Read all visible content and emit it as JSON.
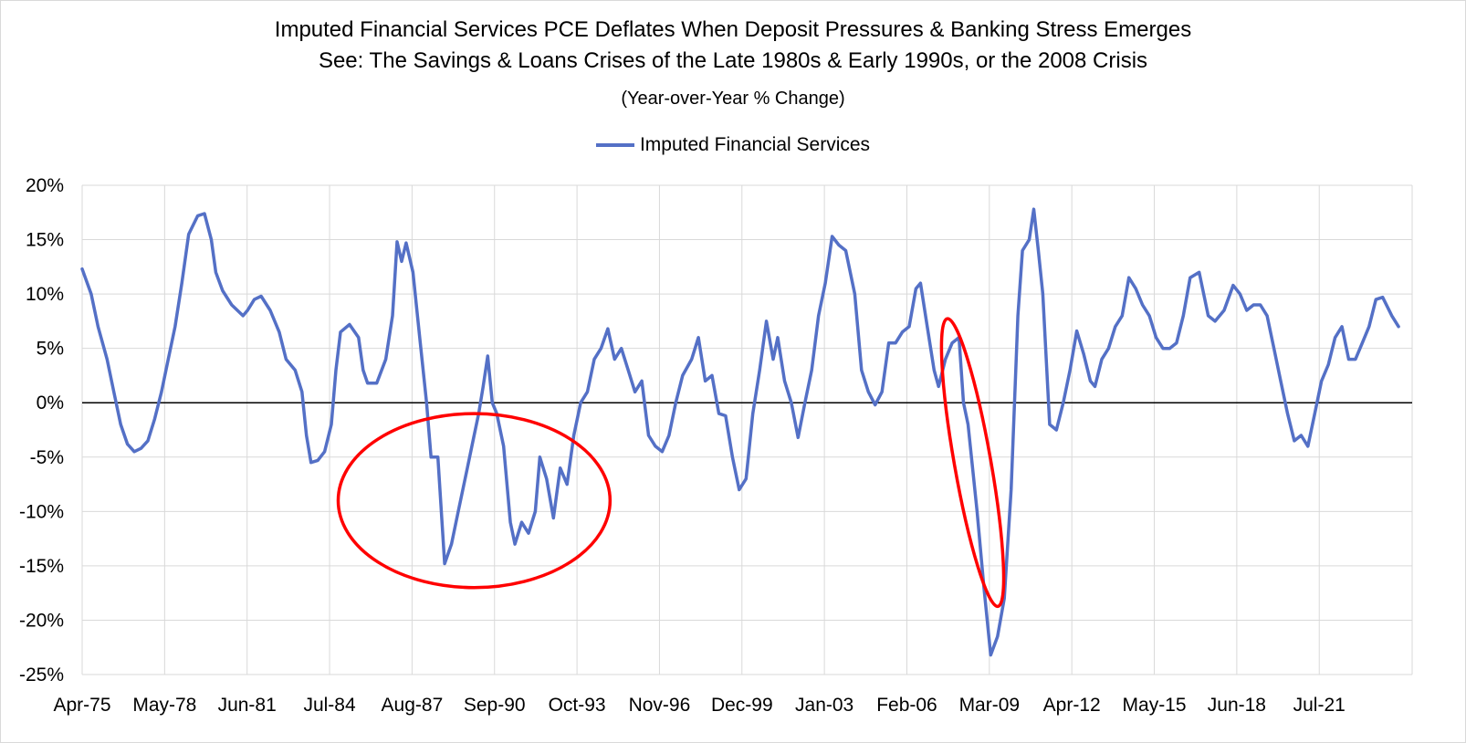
{
  "colors": {
    "series": "#5470c6",
    "annotation": "#ff0000",
    "grid": "#d9d9d9",
    "zero_line": "#000000"
  },
  "chart_data": {
    "type": "line",
    "title": "Imputed Financial Services PCE  Deflates When Deposit Pressures & Banking Stress Emerges",
    "title_line2": "See: The Savings & Loans Crises of the Late 1980s & Early 1990s, or the 2008 Crisis",
    "subtitle": "(Year-over-Year % Change)",
    "xlabel": "",
    "ylabel": "",
    "legend_position": "top-center",
    "grid": "vertical-and-horizontal",
    "x_tick_labels": [
      "Apr-75",
      "May-78",
      "Jun-81",
      "Jul-84",
      "Aug-87",
      "Sep-90",
      "Oct-93",
      "Nov-96",
      "Dec-99",
      "Jan-03",
      "Feb-06",
      "Mar-09",
      "Apr-12",
      "May-15",
      "Jun-18",
      "Jul-21"
    ],
    "y_tick_labels": [
      "20%",
      "15%",
      "10%",
      "5%",
      "0%",
      "-5%",
      "-10%",
      "-15%",
      "-20%",
      "-25%"
    ],
    "xlim": [
      "1975-04",
      "2024-03"
    ],
    "ylim": [
      -25,
      20
    ],
    "annotations": [
      {
        "shape": "ellipse",
        "from": "1984-09",
        "to": "1994-09",
        "ymin": -17,
        "ymax": -1
      },
      {
        "shape": "ellipse",
        "from": "2006-09",
        "to": "2009-05",
        "ymin": -19,
        "ymax": 8
      }
    ],
    "series": [
      {
        "name": "Imputed Financial Services",
        "points": [
          [
            "1975-04",
            12.3
          ],
          [
            "1975-08",
            10
          ],
          [
            "1975-11",
            7
          ],
          [
            "1976-03",
            4
          ],
          [
            "1976-06",
            1
          ],
          [
            "1976-09",
            -2
          ],
          [
            "1976-12",
            -3.8
          ],
          [
            "1977-03",
            -4.5
          ],
          [
            "1977-06",
            -4.2
          ],
          [
            "1977-09",
            -3.5
          ],
          [
            "1977-12",
            -1.5
          ],
          [
            "1978-03",
            1
          ],
          [
            "1978-06",
            4
          ],
          [
            "1978-09",
            7
          ],
          [
            "1978-12",
            11
          ],
          [
            "1979-03",
            15.5
          ],
          [
            "1979-07",
            17.2
          ],
          [
            "1979-10",
            17.4
          ],
          [
            "1980-01",
            15
          ],
          [
            "1980-03",
            12
          ],
          [
            "1980-06",
            10.3
          ],
          [
            "1980-10",
            9
          ],
          [
            "1981-03",
            8
          ],
          [
            "1981-05",
            8.5
          ],
          [
            "1981-08",
            9.5
          ],
          [
            "1981-11",
            9.8
          ],
          [
            "1982-03",
            8.5
          ],
          [
            "1982-07",
            6.5
          ],
          [
            "1982-10",
            4
          ],
          [
            "1983-02",
            3
          ],
          [
            "1983-05",
            1
          ],
          [
            "1983-07",
            -3
          ],
          [
            "1983-09",
            -5.5
          ],
          [
            "1983-12",
            -5.3
          ],
          [
            "1984-03",
            -4.5
          ],
          [
            "1984-06",
            -2
          ],
          [
            "1984-08",
            3
          ],
          [
            "1984-10",
            6.5
          ],
          [
            "1985-02",
            7.2
          ],
          [
            "1985-06",
            6
          ],
          [
            "1985-08",
            3
          ],
          [
            "1985-10",
            1.8
          ],
          [
            "1986-02",
            1.8
          ],
          [
            "1986-06",
            4
          ],
          [
            "1986-09",
            8
          ],
          [
            "1986-11",
            14.8
          ],
          [
            "1987-01",
            13
          ],
          [
            "1987-03",
            14.7
          ],
          [
            "1987-06",
            12
          ],
          [
            "1987-09",
            6
          ],
          [
            "1987-12",
            0
          ],
          [
            "1988-02",
            -5
          ],
          [
            "1988-05",
            -5
          ],
          [
            "1988-08",
            -14.8
          ],
          [
            "1988-11",
            -13
          ],
          [
            "1989-02",
            -10
          ],
          [
            "1989-06",
            -6
          ],
          [
            "1989-09",
            -3
          ],
          [
            "1989-11",
            -1
          ],
          [
            "1990-01",
            1.5
          ],
          [
            "1990-03",
            4.3
          ],
          [
            "1990-05",
            0
          ],
          [
            "1990-07",
            -1
          ],
          [
            "1990-10",
            -4
          ],
          [
            "1991-01",
            -11
          ],
          [
            "1991-03",
            -13
          ],
          [
            "1991-06",
            -11
          ],
          [
            "1991-09",
            -12
          ],
          [
            "1991-12",
            -10
          ],
          [
            "1992-02",
            -5
          ],
          [
            "1992-05",
            -7
          ],
          [
            "1992-08",
            -10.6
          ],
          [
            "1992-11",
            -6
          ],
          [
            "1993-02",
            -7.5
          ],
          [
            "1993-05",
            -3
          ],
          [
            "1993-08",
            0
          ],
          [
            "1993-11",
            1
          ],
          [
            "1994-02",
            4
          ],
          [
            "1994-05",
            5
          ],
          [
            "1994-08",
            6.8
          ],
          [
            "1994-11",
            4
          ],
          [
            "1995-02",
            5
          ],
          [
            "1995-05",
            3
          ],
          [
            "1995-08",
            1
          ],
          [
            "1995-11",
            2
          ],
          [
            "1996-02",
            -3
          ],
          [
            "1996-05",
            -4
          ],
          [
            "1996-08",
            -4.5
          ],
          [
            "1996-11",
            -3
          ],
          [
            "1997-02",
            0
          ],
          [
            "1997-05",
            2.5
          ],
          [
            "1997-09",
            4
          ],
          [
            "1997-12",
            6
          ],
          [
            "1998-03",
            2
          ],
          [
            "1998-06",
            2.5
          ],
          [
            "1998-09",
            -1
          ],
          [
            "1998-12",
            -1.2
          ],
          [
            "1999-03",
            -5
          ],
          [
            "1999-06",
            -8
          ],
          [
            "1999-09",
            -7
          ],
          [
            "1999-12",
            -1
          ],
          [
            "2000-03",
            3
          ],
          [
            "2000-06",
            7.5
          ],
          [
            "2000-09",
            4
          ],
          [
            "2000-11",
            6
          ],
          [
            "2001-02",
            2
          ],
          [
            "2001-05",
            0
          ],
          [
            "2001-08",
            -3.2
          ],
          [
            "2001-11",
            0
          ],
          [
            "2002-02",
            3
          ],
          [
            "2002-05",
            8
          ],
          [
            "2002-08",
            11
          ],
          [
            "2002-11",
            15.3
          ],
          [
            "2003-02",
            14.5
          ],
          [
            "2003-05",
            14
          ],
          [
            "2003-09",
            10
          ],
          [
            "2003-12",
            3
          ],
          [
            "2004-03",
            1
          ],
          [
            "2004-06",
            -0.2
          ],
          [
            "2004-09",
            1
          ],
          [
            "2004-12",
            5.5
          ],
          [
            "2005-03",
            5.5
          ],
          [
            "2005-06",
            6.5
          ],
          [
            "2005-09",
            7
          ],
          [
            "2005-12",
            10.5
          ],
          [
            "2006-02",
            11
          ],
          [
            "2006-05",
            7
          ],
          [
            "2006-08",
            3
          ],
          [
            "2006-10",
            1.5
          ],
          [
            "2007-01",
            4
          ],
          [
            "2007-04",
            5.5
          ],
          [
            "2007-07",
            6
          ],
          [
            "2007-09",
            0
          ],
          [
            "2007-11",
            -2
          ],
          [
            "2008-03",
            -10
          ],
          [
            "2008-06",
            -17
          ],
          [
            "2008-09",
            -23.2
          ],
          [
            "2008-12",
            -21.5
          ],
          [
            "2009-03",
            -18
          ],
          [
            "2009-06",
            -8
          ],
          [
            "2009-09",
            8
          ],
          [
            "2009-11",
            14
          ],
          [
            "2010-02",
            15
          ],
          [
            "2010-04",
            17.8
          ],
          [
            "2010-06",
            14
          ],
          [
            "2010-08",
            10
          ],
          [
            "2010-11",
            -2
          ],
          [
            "2011-02",
            -2.5
          ],
          [
            "2011-05",
            0
          ],
          [
            "2011-08",
            3
          ],
          [
            "2011-11",
            6.6
          ],
          [
            "2012-02",
            4.5
          ],
          [
            "2012-05",
            2
          ],
          [
            "2012-07",
            1.5
          ],
          [
            "2012-10",
            4
          ],
          [
            "2013-01",
            5
          ],
          [
            "2013-04",
            7
          ],
          [
            "2013-07",
            8
          ],
          [
            "2013-10",
            11.5
          ],
          [
            "2014-01",
            10.5
          ],
          [
            "2014-04",
            9
          ],
          [
            "2014-07",
            8
          ],
          [
            "2014-10",
            6
          ],
          [
            "2015-01",
            5
          ],
          [
            "2015-04",
            5
          ],
          [
            "2015-07",
            5.5
          ],
          [
            "2015-10",
            8
          ],
          [
            "2016-01",
            11.5
          ],
          [
            "2016-05",
            12
          ],
          [
            "2016-09",
            8
          ],
          [
            "2016-12",
            7.5
          ],
          [
            "2017-04",
            8.5
          ],
          [
            "2017-08",
            10.8
          ],
          [
            "2017-11",
            10
          ],
          [
            "2018-02",
            8.5
          ],
          [
            "2018-05",
            9
          ],
          [
            "2018-08",
            9
          ],
          [
            "2018-11",
            8
          ],
          [
            "2019-02",
            5
          ],
          [
            "2019-05",
            2
          ],
          [
            "2019-08",
            -1
          ],
          [
            "2019-11",
            -3.5
          ],
          [
            "2020-02",
            -3
          ],
          [
            "2020-05",
            -4
          ],
          [
            "2020-08",
            -1
          ],
          [
            "2020-11",
            2
          ],
          [
            "2021-02",
            3.5
          ],
          [
            "2021-05",
            6
          ],
          [
            "2021-08",
            7
          ],
          [
            "2021-11",
            4
          ],
          [
            "2022-02",
            4
          ],
          [
            "2022-05",
            5.5
          ],
          [
            "2022-08",
            7
          ],
          [
            "2022-11",
            9.5
          ],
          [
            "2023-02",
            9.7
          ],
          [
            "2023-06",
            8
          ],
          [
            "2023-09",
            7
          ]
        ]
      }
    ]
  }
}
